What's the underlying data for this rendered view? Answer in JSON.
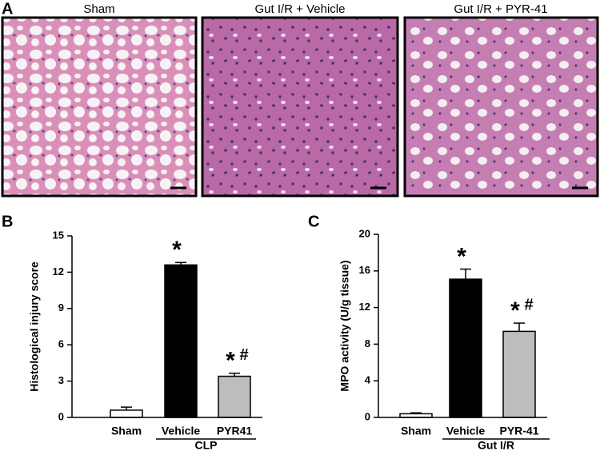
{
  "panels": [
    {
      "label": "A",
      "images": [
        "Sham",
        "Gut I/R + Vehicle",
        "Gut I/R + PYR-41"
      ]
    },
    {
      "label": "B"
    },
    {
      "label": "C"
    }
  ],
  "chart_data": [
    {
      "type": "bar",
      "y_label": "Histological injury score",
      "categories": [
        "Sham",
        "Vehicle",
        "PYR41"
      ],
      "values": [
        0.6,
        12.6,
        3.4
      ],
      "errors": [
        0.25,
        0.2,
        0.25
      ],
      "colors": [
        "#ffffff",
        "#000000",
        "#bdbdbd"
      ],
      "group_label": "CLP",
      "annotations": [
        {
          "category": 1,
          "text": "*"
        },
        {
          "category": 2,
          "text": "*"
        },
        {
          "category": 2,
          "text": "#"
        }
      ],
      "ylim": [
        0,
        15
      ],
      "yticks": [
        0,
        3,
        6,
        9,
        12,
        15
      ]
    },
    {
      "type": "bar",
      "y_label": "MPO activity (U/g tissue)",
      "categories": [
        "Sham",
        "Vehicle",
        "PYR-41"
      ],
      "values": [
        0.4,
        15.1,
        9.4
      ],
      "errors": [
        0.1,
        1.1,
        0.9
      ],
      "colors": [
        "#ffffff",
        "#000000",
        "#bdbdbd"
      ],
      "group_label": "Gut I/R",
      "annotations": [
        {
          "category": 1,
          "text": "*"
        },
        {
          "category": 2,
          "text": "*"
        },
        {
          "category": 2,
          "text": "#"
        }
      ],
      "ylim": [
        0,
        20
      ],
      "yticks": [
        0,
        4,
        8,
        12,
        16,
        20
      ]
    }
  ]
}
